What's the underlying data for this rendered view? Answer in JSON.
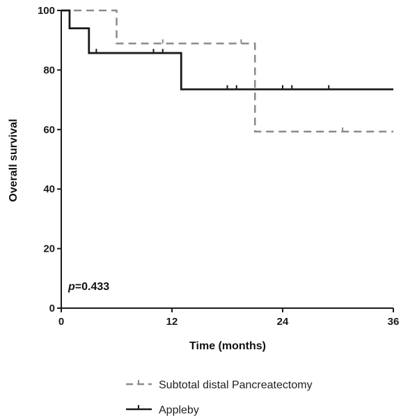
{
  "chart_data": {
    "type": "line",
    "title": "",
    "xlabel": "Time (months)",
    "ylabel": "Overall survival",
    "xlim": [
      0,
      36
    ],
    "ylim": [
      0,
      100
    ],
    "xticks": [
      0,
      12,
      24,
      36
    ],
    "yticks": [
      0,
      20,
      40,
      60,
      80,
      100
    ],
    "x_tick_labels": [
      "0",
      "12",
      "24",
      "36"
    ],
    "y_tick_labels": [
      "0",
      "20",
      "40",
      "60",
      "80",
      "100"
    ],
    "grid": false,
    "legend_position": "bottom",
    "annotation": {
      "p_letter": "p",
      "p_rest": "=0.433"
    },
    "series": [
      {
        "name": "Subtotal distal Pancreatectomy",
        "style": "dashed",
        "color": "#8a8a8a",
        "steps": [
          [
            0,
            100
          ],
          [
            6,
            100
          ],
          [
            6,
            88.9
          ],
          [
            21,
            88.9
          ],
          [
            21,
            59.3
          ],
          [
            36,
            59.3
          ]
        ],
        "censors": [
          [
            11,
            88.9
          ],
          [
            19.5,
            88.9
          ],
          [
            30.5,
            59.3
          ]
        ]
      },
      {
        "name": "Appleby",
        "style": "solid",
        "color": "#1a1a1a",
        "steps": [
          [
            0,
            100
          ],
          [
            0.9,
            100
          ],
          [
            0.9,
            94
          ],
          [
            3,
            94
          ],
          [
            3,
            85.7
          ],
          [
            13,
            85.7
          ],
          [
            13,
            73.5
          ],
          [
            36,
            73.5
          ]
        ],
        "censors": [
          [
            3.8,
            85.7
          ],
          [
            10,
            85.7
          ],
          [
            11,
            85.7
          ],
          [
            18,
            73.5
          ],
          [
            19,
            73.5
          ],
          [
            24,
            73.5
          ],
          [
            25,
            73.5
          ],
          [
            29,
            73.5
          ]
        ]
      }
    ]
  }
}
